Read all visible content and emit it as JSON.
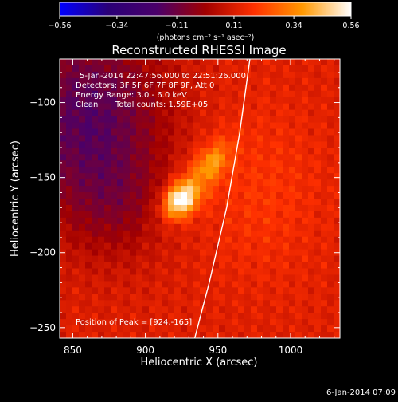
{
  "chart_data": {
    "type": "heatmap",
    "title": "Reconstructed RHESSI Image",
    "xlabel": "Heliocentric X (arcsec)",
    "ylabel": "Heliocentric Y (arcsec)",
    "xlim": [
      841,
      1034
    ],
    "ylim": [
      -257,
      -71
    ],
    "x_ticks": [
      850,
      900,
      950,
      1000
    ],
    "x_tick_labels": [
      "850",
      "900",
      "950",
      "1000"
    ],
    "y_ticks": [
      -100,
      -150,
      -200,
      -250
    ],
    "y_tick_labels": [
      "−100",
      "−150",
      "−200",
      "−250"
    ],
    "colorbar": {
      "min": -0.56,
      "max": 0.56,
      "ticks": [
        -0.56,
        -0.34,
        -0.11,
        0.11,
        0.34,
        0.56
      ],
      "tick_labels": [
        "−0.56",
        "−0.34",
        "−0.11",
        "0.11",
        "0.34",
        "0.56"
      ],
      "units": "(photons cm⁻² s⁻¹ asec⁻²)",
      "colors": [
        "#0000ff",
        "#2a0077",
        "#4a006a",
        "#a10000",
        "#ff3000",
        "#ff9800",
        "#ffffff"
      ]
    },
    "sources": [
      {
        "x": 924,
        "y": -165,
        "peak": 0.56
      },
      {
        "x": 946,
        "y": -140,
        "peak": 0.33
      }
    ],
    "limb_curve": [
      [
        972,
        -71
      ],
      [
        965,
        -120
      ],
      [
        956,
        -170
      ],
      [
        944,
        -220
      ],
      [
        934,
        -257
      ]
    ],
    "annotations": {
      "time_range": "5-Jan-2014 22:47:56.000 to 22:51:26.000",
      "detectors": "Detectors: 3F 5F 6F 7F 8F 9F, Att 0",
      "energy": "Energy Range: 3.0 - 6.0 keV",
      "method": "Clean",
      "counts": "Total counts: 1.59E+05",
      "peak": "Position of Peak = [924,-165]"
    }
  },
  "footer": {
    "timestamp": "6-Jan-2014 07:09"
  }
}
